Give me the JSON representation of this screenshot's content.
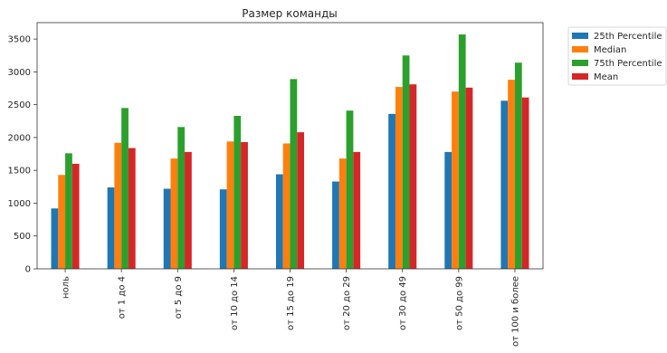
{
  "chart_data": {
    "type": "bar",
    "title": "Размер команды",
    "xlabel": "",
    "ylabel": "",
    "categories": [
      "ноль",
      "от 1 до 4",
      "от 5 до 9",
      "от 10 до 14",
      "от 15 до 19",
      "от 20 до 29",
      "от 30 до 49",
      "от 50 до 99",
      "от 100 и более"
    ],
    "series": [
      {
        "name": "25th Percentile",
        "color": "#1f77b4",
        "values": [
          920,
          1240,
          1220,
          1210,
          1440,
          1330,
          2360,
          1780,
          2560
        ]
      },
      {
        "name": "Median",
        "color": "#ff7f0e",
        "values": [
          1430,
          1920,
          1680,
          1940,
          1910,
          1680,
          2770,
          2700,
          2880
        ]
      },
      {
        "name": "75th Percentile",
        "color": "#2ca02c",
        "values": [
          1760,
          2450,
          2160,
          2330,
          2890,
          2410,
          3250,
          3570,
          3140
        ]
      },
      {
        "name": "Mean",
        "color": "#d62728",
        "values": [
          1600,
          1840,
          1780,
          1930,
          2080,
          1780,
          2810,
          2760,
          2610
        ]
      }
    ],
    "ylim": [
      0,
      3750
    ],
    "yticks": [
      0,
      500,
      1000,
      1500,
      2000,
      2500,
      3000,
      3500
    ],
    "grid": false,
    "legend_position": "outside-top-right"
  }
}
